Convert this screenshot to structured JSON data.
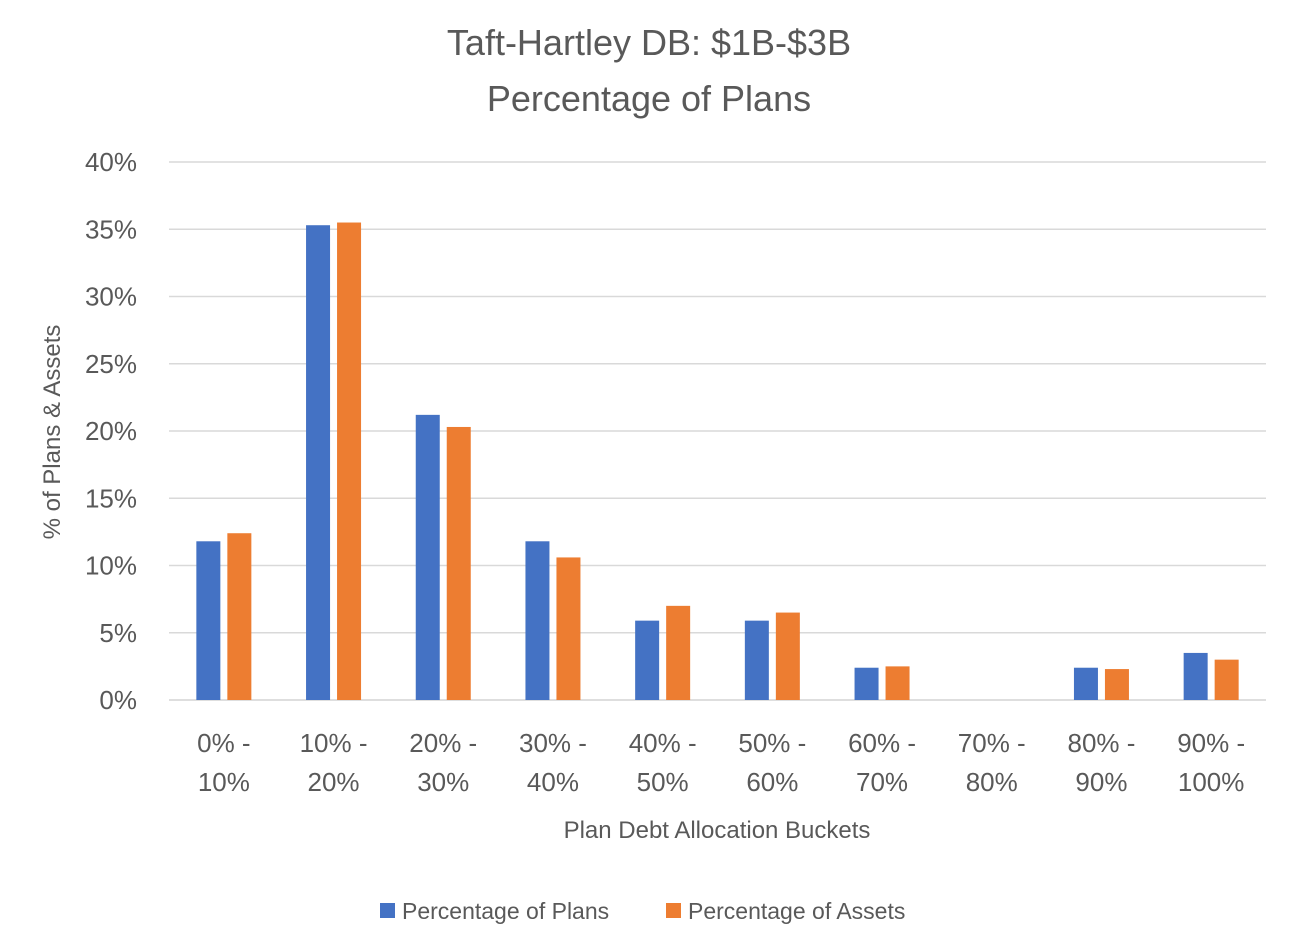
{
  "chart_data": {
    "type": "bar",
    "title_lines": [
      "Taft-Hartley DB: $1B-$3B",
      "Percentage of Plans"
    ],
    "xlabel": "Plan Debt Allocation Buckets",
    "ylabel": "% of Plans & Assets",
    "categories": [
      [
        "0% -",
        "10%"
      ],
      [
        "10% -",
        "20%"
      ],
      [
        "20% -",
        "30%"
      ],
      [
        "30% -",
        "40%"
      ],
      [
        "40% -",
        "50%"
      ],
      [
        "50% -",
        "60%"
      ],
      [
        "60% -",
        "70%"
      ],
      [
        "70% -",
        "80%"
      ],
      [
        "80% -",
        "90%"
      ],
      [
        "90% -",
        "100%"
      ]
    ],
    "series": [
      {
        "name": "Percentage of Plans",
        "color": "#4472C4",
        "values": [
          11.8,
          35.3,
          21.2,
          11.8,
          5.9,
          5.9,
          2.4,
          0,
          2.4,
          3.5
        ]
      },
      {
        "name": "Percentage of Assets",
        "color": "#ED7D31",
        "values": [
          12.4,
          35.5,
          20.3,
          10.6,
          7.0,
          6.5,
          2.5,
          0,
          2.3,
          3.0
        ]
      }
    ],
    "yticks": [
      "0%",
      "5%",
      "10%",
      "15%",
      "20%",
      "25%",
      "30%",
      "35%",
      "40%"
    ],
    "ylim": [
      0,
      40
    ],
    "grid": true,
    "legend_position": "bottom"
  }
}
